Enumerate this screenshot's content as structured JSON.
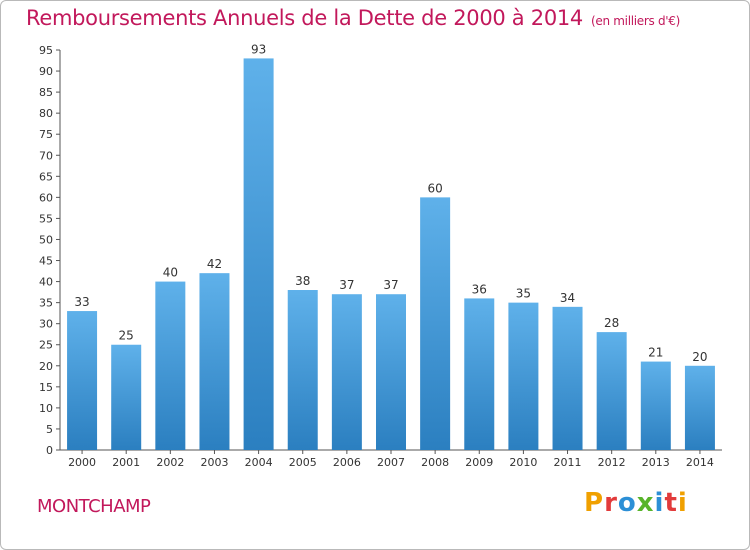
{
  "header": {
    "title": "Remboursements Annuels de la Dette de 2000 à 2014",
    "unit": "(en milliers d'€)"
  },
  "footer": {
    "place": "MONTCHAMP",
    "logo": "Proxiti"
  },
  "colors": {
    "title": "#c2185b",
    "bar_top": "#5fb1ea",
    "bar_bottom": "#2b7fc0",
    "logo_letters": [
      "#f0a000",
      "#e23b3b",
      "#2c8fd6",
      "#58b42a",
      "#2c8fd6",
      "#e23b3b",
      "#f0a000"
    ]
  },
  "chart_data": {
    "type": "bar",
    "title": "Remboursements Annuels de la Dette de 2000 à 2014",
    "xlabel": "",
    "ylabel": "",
    "categories": [
      "2000",
      "2001",
      "2002",
      "2003",
      "2004",
      "2005",
      "2006",
      "2007",
      "2008",
      "2009",
      "2010",
      "2011",
      "2012",
      "2013",
      "2014"
    ],
    "values": [
      33,
      25,
      40,
      42,
      93,
      38,
      37,
      37,
      60,
      36,
      35,
      34,
      28,
      21,
      20
    ],
    "ylim": [
      0,
      95
    ],
    "ytick_step": 5,
    "grid": false,
    "data_labels": true
  }
}
